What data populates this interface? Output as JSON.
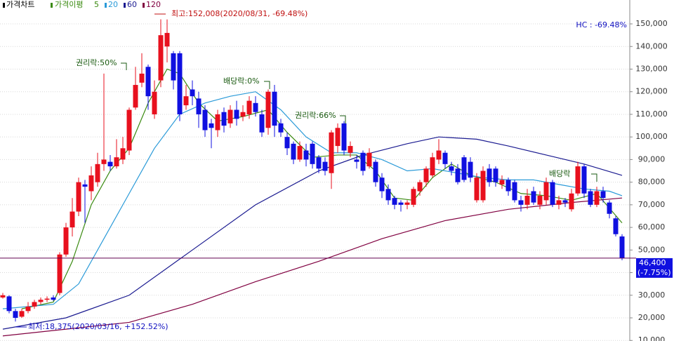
{
  "chart_data": {
    "type": "candlestick",
    "legend": {
      "price_chart": "가격차트",
      "price_ma": "가격이평"
    },
    "up_color": "#e8101e",
    "down_color": "#1010e0",
    "open": [
      29000,
      29500,
      23000,
      20500,
      23000,
      25000,
      27000,
      28000,
      29000,
      31000,
      48000,
      60000,
      67000,
      79000,
      76000,
      80000,
      88000,
      89000,
      87000,
      90000,
      94000,
      113000,
      124000,
      131000,
      110000,
      125000,
      140000,
      137000,
      137000,
      114000,
      121000,
      117000,
      112000,
      106000,
      103000,
      111000,
      106000,
      112000,
      109000,
      110000,
      115000,
      110000,
      104000,
      120000,
      106000,
      100000,
      97000,
      90000,
      94000,
      97000,
      91000,
      89000,
      84000,
      96000,
      106000,
      93000,
      90000,
      93000,
      87000,
      89000,
      82000,
      77000,
      73000,
      71000,
      70000,
      70000,
      76000,
      80000,
      83000,
      90000,
      93000,
      87000,
      86000,
      91000,
      89000,
      72000,
      72000,
      86000,
      86000,
      79000,
      81000,
      80000,
      72000,
      70000,
      76000,
      70000,
      72000,
      80000,
      70000,
      72000,
      68000,
      75000,
      87000,
      76000,
      70000,
      76000,
      71000,
      64000,
      56000
    ],
    "high": [
      31000,
      30000,
      24000,
      24000,
      27000,
      28000,
      29000,
      29500,
      30000,
      49000,
      62000,
      73000,
      82000,
      81000,
      87000,
      93000,
      128000,
      92000,
      99000,
      100000,
      113000,
      131000,
      137000,
      132000,
      125000,
      152008,
      152000,
      138000,
      138000,
      123000,
      125000,
      120000,
      114000,
      108000,
      112000,
      113000,
      114000,
      116000,
      114000,
      118000,
      118000,
      112000,
      121000,
      123000,
      108000,
      102000,
      98000,
      98000,
      97000,
      98000,
      92000,
      91000,
      103000,
      106000,
      107000,
      98000,
      92000,
      94000,
      95000,
      90000,
      84000,
      79000,
      74000,
      72000,
      72000,
      78000,
      81000,
      87000,
      93000,
      99000,
      94000,
      89000,
      88000,
      92000,
      91000,
      84000,
      87000,
      88000,
      87000,
      83000,
      82000,
      81000,
      74000,
      77000,
      78000,
      76000,
      82000,
      81000,
      74000,
      73000,
      77000,
      89000,
      88000,
      77000,
      78000,
      78000,
      72000,
      65000,
      57000
    ],
    "low": [
      28500,
      22000,
      18375,
      20000,
      22000,
      24000,
      26000,
      27000,
      27500,
      30000,
      47000,
      56000,
      65000,
      62000,
      72000,
      78000,
      85000,
      85000,
      86000,
      88000,
      92000,
      112000,
      122000,
      112000,
      108000,
      122000,
      133000,
      121000,
      107000,
      112000,
      114000,
      104000,
      100000,
      95000,
      100000,
      102000,
      104000,
      105000,
      107000,
      108000,
      109000,
      100000,
      101000,
      100000,
      100000,
      92000,
      88000,
      89000,
      87000,
      86000,
      84000,
      83000,
      77000,
      93000,
      92000,
      91000,
      86000,
      83000,
      86000,
      78000,
      73000,
      70000,
      68000,
      67000,
      68000,
      69000,
      74000,
      78000,
      82000,
      88000,
      86000,
      83000,
      79000,
      80000,
      80000,
      71000,
      71000,
      78000,
      78000,
      77000,
      74000,
      71000,
      67000,
      68000,
      70000,
      68000,
      70000,
      69000,
      68000,
      69000,
      67000,
      74000,
      73000,
      69000,
      69000,
      71000,
      64000,
      56000,
      45500
    ],
    "close": [
      30000,
      23000,
      20000,
      23000,
      25000,
      27000,
      28000,
      28500,
      28000,
      48000,
      60000,
      67000,
      80000,
      78000,
      83000,
      88000,
      90000,
      87000,
      91000,
      95000,
      112000,
      123000,
      128000,
      118000,
      120000,
      145000,
      146000,
      125000,
      110000,
      118000,
      118000,
      110000,
      103000,
      104000,
      110000,
      105000,
      112000,
      108000,
      111000,
      116000,
      111000,
      102000,
      120000,
      105000,
      102000,
      95000,
      90000,
      96000,
      90000,
      88000,
      86000,
      85000,
      102000,
      104000,
      94000,
      96000,
      89000,
      85000,
      93000,
      80000,
      76000,
      72000,
      70000,
      70000,
      71000,
      77000,
      80000,
      86000,
      91000,
      94000,
      88000,
      85000,
      80000,
      81000,
      82000,
      82000,
      85000,
      80000,
      80000,
      81000,
      76000,
      72000,
      70000,
      74000,
      71000,
      74000,
      80000,
      70000,
      72000,
      71000,
      75000,
      87000,
      75000,
      70000,
      76000,
      73000,
      66000,
      57000,
      46400
    ],
    "series": [
      {
        "name": "5",
        "color": "#3a8a10",
        "x": [
          3,
          8,
          11,
          14,
          17,
          20,
          23,
          26,
          28,
          31,
          34,
          38,
          42,
          45,
          49,
          53,
          56,
          59,
          62,
          65,
          68,
          71,
          74,
          78,
          82,
          86,
          90,
          94,
          98
        ],
        "values": [
          24000,
          27000,
          45000,
          70000,
          85000,
          95000,
          115000,
          130000,
          128000,
          115000,
          107000,
          109000,
          112000,
          102000,
          91000,
          92000,
          92000,
          85000,
          73000,
          72000,
          82000,
          88000,
          83000,
          80000,
          75000,
          74000,
          72000,
          75000,
          62000
        ]
      },
      {
        "name": "20",
        "color": "#2a9ad8",
        "x": [
          0,
          8,
          12,
          16,
          20,
          24,
          28,
          32,
          36,
          40,
          44,
          48,
          52,
          56,
          60,
          64,
          68,
          72,
          76,
          80,
          84,
          88,
          92,
          96,
          98
        ],
        "values": [
          24000,
          26000,
          35000,
          55000,
          75000,
          95000,
          110000,
          115000,
          118000,
          120000,
          112000,
          100000,
          93000,
          93000,
          90000,
          85000,
          86000,
          84000,
          82000,
          81000,
          81000,
          79000,
          77000,
          76000,
          74000
        ]
      },
      {
        "name": "60",
        "color": "#1a1a90",
        "x": [
          0,
          10,
          20,
          30,
          40,
          50,
          57,
          64,
          69,
          75,
          80,
          86,
          92,
          98
        ],
        "values": [
          15000,
          20000,
          30000,
          50000,
          70000,
          85000,
          92000,
          97000,
          100000,
          99000,
          96000,
          92000,
          88000,
          83000
        ]
      },
      {
        "name": "120",
        "color": "#800040",
        "x": [
          0,
          20,
          30,
          40,
          50,
          60,
          70,
          80,
          90,
          98
        ],
        "values": [
          12000,
          18000,
          26000,
          36000,
          45000,
          55000,
          63000,
          68000,
          71000,
          73000
        ]
      }
    ],
    "ylim": [
      9760,
      160560
    ],
    "yticks": [
      {
        "value": 10000,
        "label": "10,000"
      },
      {
        "value": 20000,
        "label": "20,000"
      },
      {
        "value": 30000,
        "label": "30,000"
      },
      {
        "value": 40000,
        "label": "40,000"
      },
      {
        "value": 50000,
        "label": "50,000"
      },
      {
        "value": 60000,
        "label": "60,000"
      },
      {
        "value": 70000,
        "label": "70,000"
      },
      {
        "value": 80000,
        "label": "80,000"
      },
      {
        "value": 90000,
        "label": "90,000"
      },
      {
        "value": 100000,
        "label": "100,000"
      },
      {
        "value": 110000,
        "label": "110,000"
      },
      {
        "value": 120000,
        "label": "120,000"
      },
      {
        "value": 130000,
        "label": "130,000"
      },
      {
        "value": 140000,
        "label": "140,000"
      },
      {
        "value": 150000,
        "label": "150,000"
      }
    ],
    "grid": true,
    "last_price": {
      "value": 46400,
      "label": "46,400"
    },
    "change_label": "(-7.75%)",
    "hc_label": "HC : -69.48%",
    "annotations": [
      "최고:152,008(2020/08/31, -69.48%)",
      "최저:18,375(2020/03/16, +152.52%)",
      "권리락:50%",
      "배당락:0%",
      "권리락:66%",
      "배당락"
    ]
  }
}
